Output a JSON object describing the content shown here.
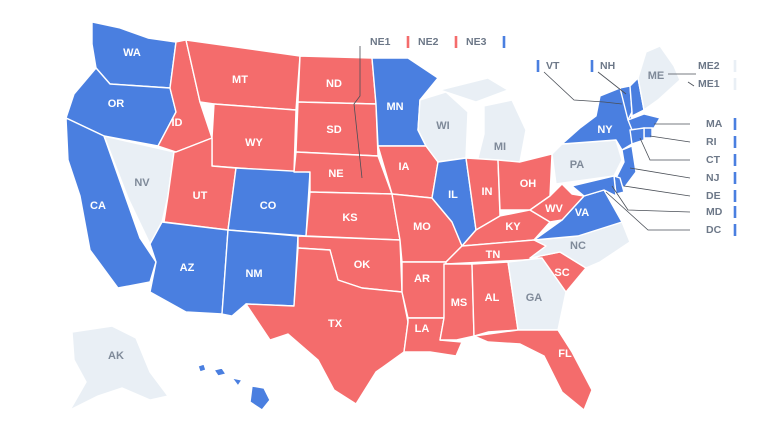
{
  "colors": {
    "blue": "#4a7fe0",
    "red": "#f46c6c",
    "gray": "#e9eff5"
  },
  "states": [
    {
      "id": "WA",
      "label": "WA",
      "party": "blue"
    },
    {
      "id": "OR",
      "label": "OR",
      "party": "blue"
    },
    {
      "id": "CA",
      "label": "CA",
      "party": "blue"
    },
    {
      "id": "NV",
      "label": "NV",
      "party": "gray"
    },
    {
      "id": "ID",
      "label": "ID",
      "party": "red"
    },
    {
      "id": "MT",
      "label": "MT",
      "party": "red"
    },
    {
      "id": "WY",
      "label": "WY",
      "party": "red"
    },
    {
      "id": "UT",
      "label": "UT",
      "party": "red"
    },
    {
      "id": "CO",
      "label": "CO",
      "party": "blue"
    },
    {
      "id": "AZ",
      "label": "AZ",
      "party": "blue"
    },
    {
      "id": "NM",
      "label": "NM",
      "party": "blue"
    },
    {
      "id": "ND",
      "label": "ND",
      "party": "red"
    },
    {
      "id": "SD",
      "label": "SD",
      "party": "red"
    },
    {
      "id": "NE",
      "label": "NE",
      "party": "red"
    },
    {
      "id": "KS",
      "label": "KS",
      "party": "red"
    },
    {
      "id": "OK",
      "label": "OK",
      "party": "red"
    },
    {
      "id": "TX",
      "label": "TX",
      "party": "red"
    },
    {
      "id": "MN",
      "label": "MN",
      "party": "blue"
    },
    {
      "id": "IA",
      "label": "IA",
      "party": "red"
    },
    {
      "id": "MO",
      "label": "MO",
      "party": "red"
    },
    {
      "id": "AR",
      "label": "AR",
      "party": "red"
    },
    {
      "id": "LA",
      "label": "LA",
      "party": "red"
    },
    {
      "id": "WI",
      "label": "WI",
      "party": "gray"
    },
    {
      "id": "IL",
      "label": "IL",
      "party": "blue"
    },
    {
      "id": "MI",
      "label": "MI",
      "party": "gray"
    },
    {
      "id": "IN",
      "label": "IN",
      "party": "red"
    },
    {
      "id": "OH",
      "label": "OH",
      "party": "red"
    },
    {
      "id": "KY",
      "label": "KY",
      "party": "red"
    },
    {
      "id": "TN",
      "label": "TN",
      "party": "red"
    },
    {
      "id": "MS",
      "label": "MS",
      "party": "red"
    },
    {
      "id": "AL",
      "label": "AL",
      "party": "red"
    },
    {
      "id": "GA",
      "label": "GA",
      "party": "gray"
    },
    {
      "id": "FL",
      "label": "FL",
      "party": "red"
    },
    {
      "id": "SC",
      "label": "SC",
      "party": "red"
    },
    {
      "id": "NC",
      "label": "NC",
      "party": "gray"
    },
    {
      "id": "VA",
      "label": "VA",
      "party": "blue"
    },
    {
      "id": "WV",
      "label": "WV",
      "party": "red"
    },
    {
      "id": "PA",
      "label": "PA",
      "party": "gray"
    },
    {
      "id": "NY",
      "label": "NY",
      "party": "blue"
    },
    {
      "id": "VT",
      "label": "VT",
      "party": "blue"
    },
    {
      "id": "NH",
      "label": "NH",
      "party": "blue"
    },
    {
      "id": "ME",
      "label": "ME",
      "party": "gray"
    },
    {
      "id": "MA",
      "label": "MA",
      "party": "blue"
    },
    {
      "id": "RI",
      "label": "RI",
      "party": "blue"
    },
    {
      "id": "CT",
      "label": "CT",
      "party": "blue"
    },
    {
      "id": "NJ",
      "label": "NJ",
      "party": "blue"
    },
    {
      "id": "DE",
      "label": "DE",
      "party": "blue"
    },
    {
      "id": "MD",
      "label": "MD",
      "party": "blue"
    },
    {
      "id": "AK",
      "label": "AK",
      "party": "gray"
    },
    {
      "id": "HI",
      "label": "HI",
      "party": "blue"
    }
  ],
  "districts": [
    {
      "id": "NE1",
      "label": "NE1",
      "party": "red"
    },
    {
      "id": "NE2",
      "label": "NE2",
      "party": "red"
    },
    {
      "id": "NE3",
      "label": "NE3",
      "party": "blue"
    },
    {
      "id": "ME2",
      "label": "ME2",
      "party": "gray"
    },
    {
      "id": "ME1",
      "label": "ME1",
      "party": "gray"
    }
  ],
  "callouts": [
    {
      "id": "VT",
      "label": "VT",
      "party": "blue"
    },
    {
      "id": "NH",
      "label": "NH",
      "party": "blue"
    },
    {
      "id": "MA",
      "label": "MA",
      "party": "blue"
    },
    {
      "id": "RI",
      "label": "RI",
      "party": "blue"
    },
    {
      "id": "CT",
      "label": "CT",
      "party": "blue"
    },
    {
      "id": "NJ",
      "label": "NJ",
      "party": "blue"
    },
    {
      "id": "DE",
      "label": "DE",
      "party": "blue"
    },
    {
      "id": "MD",
      "label": "MD",
      "party": "blue"
    },
    {
      "id": "DC",
      "label": "DC",
      "party": "blue"
    }
  ]
}
